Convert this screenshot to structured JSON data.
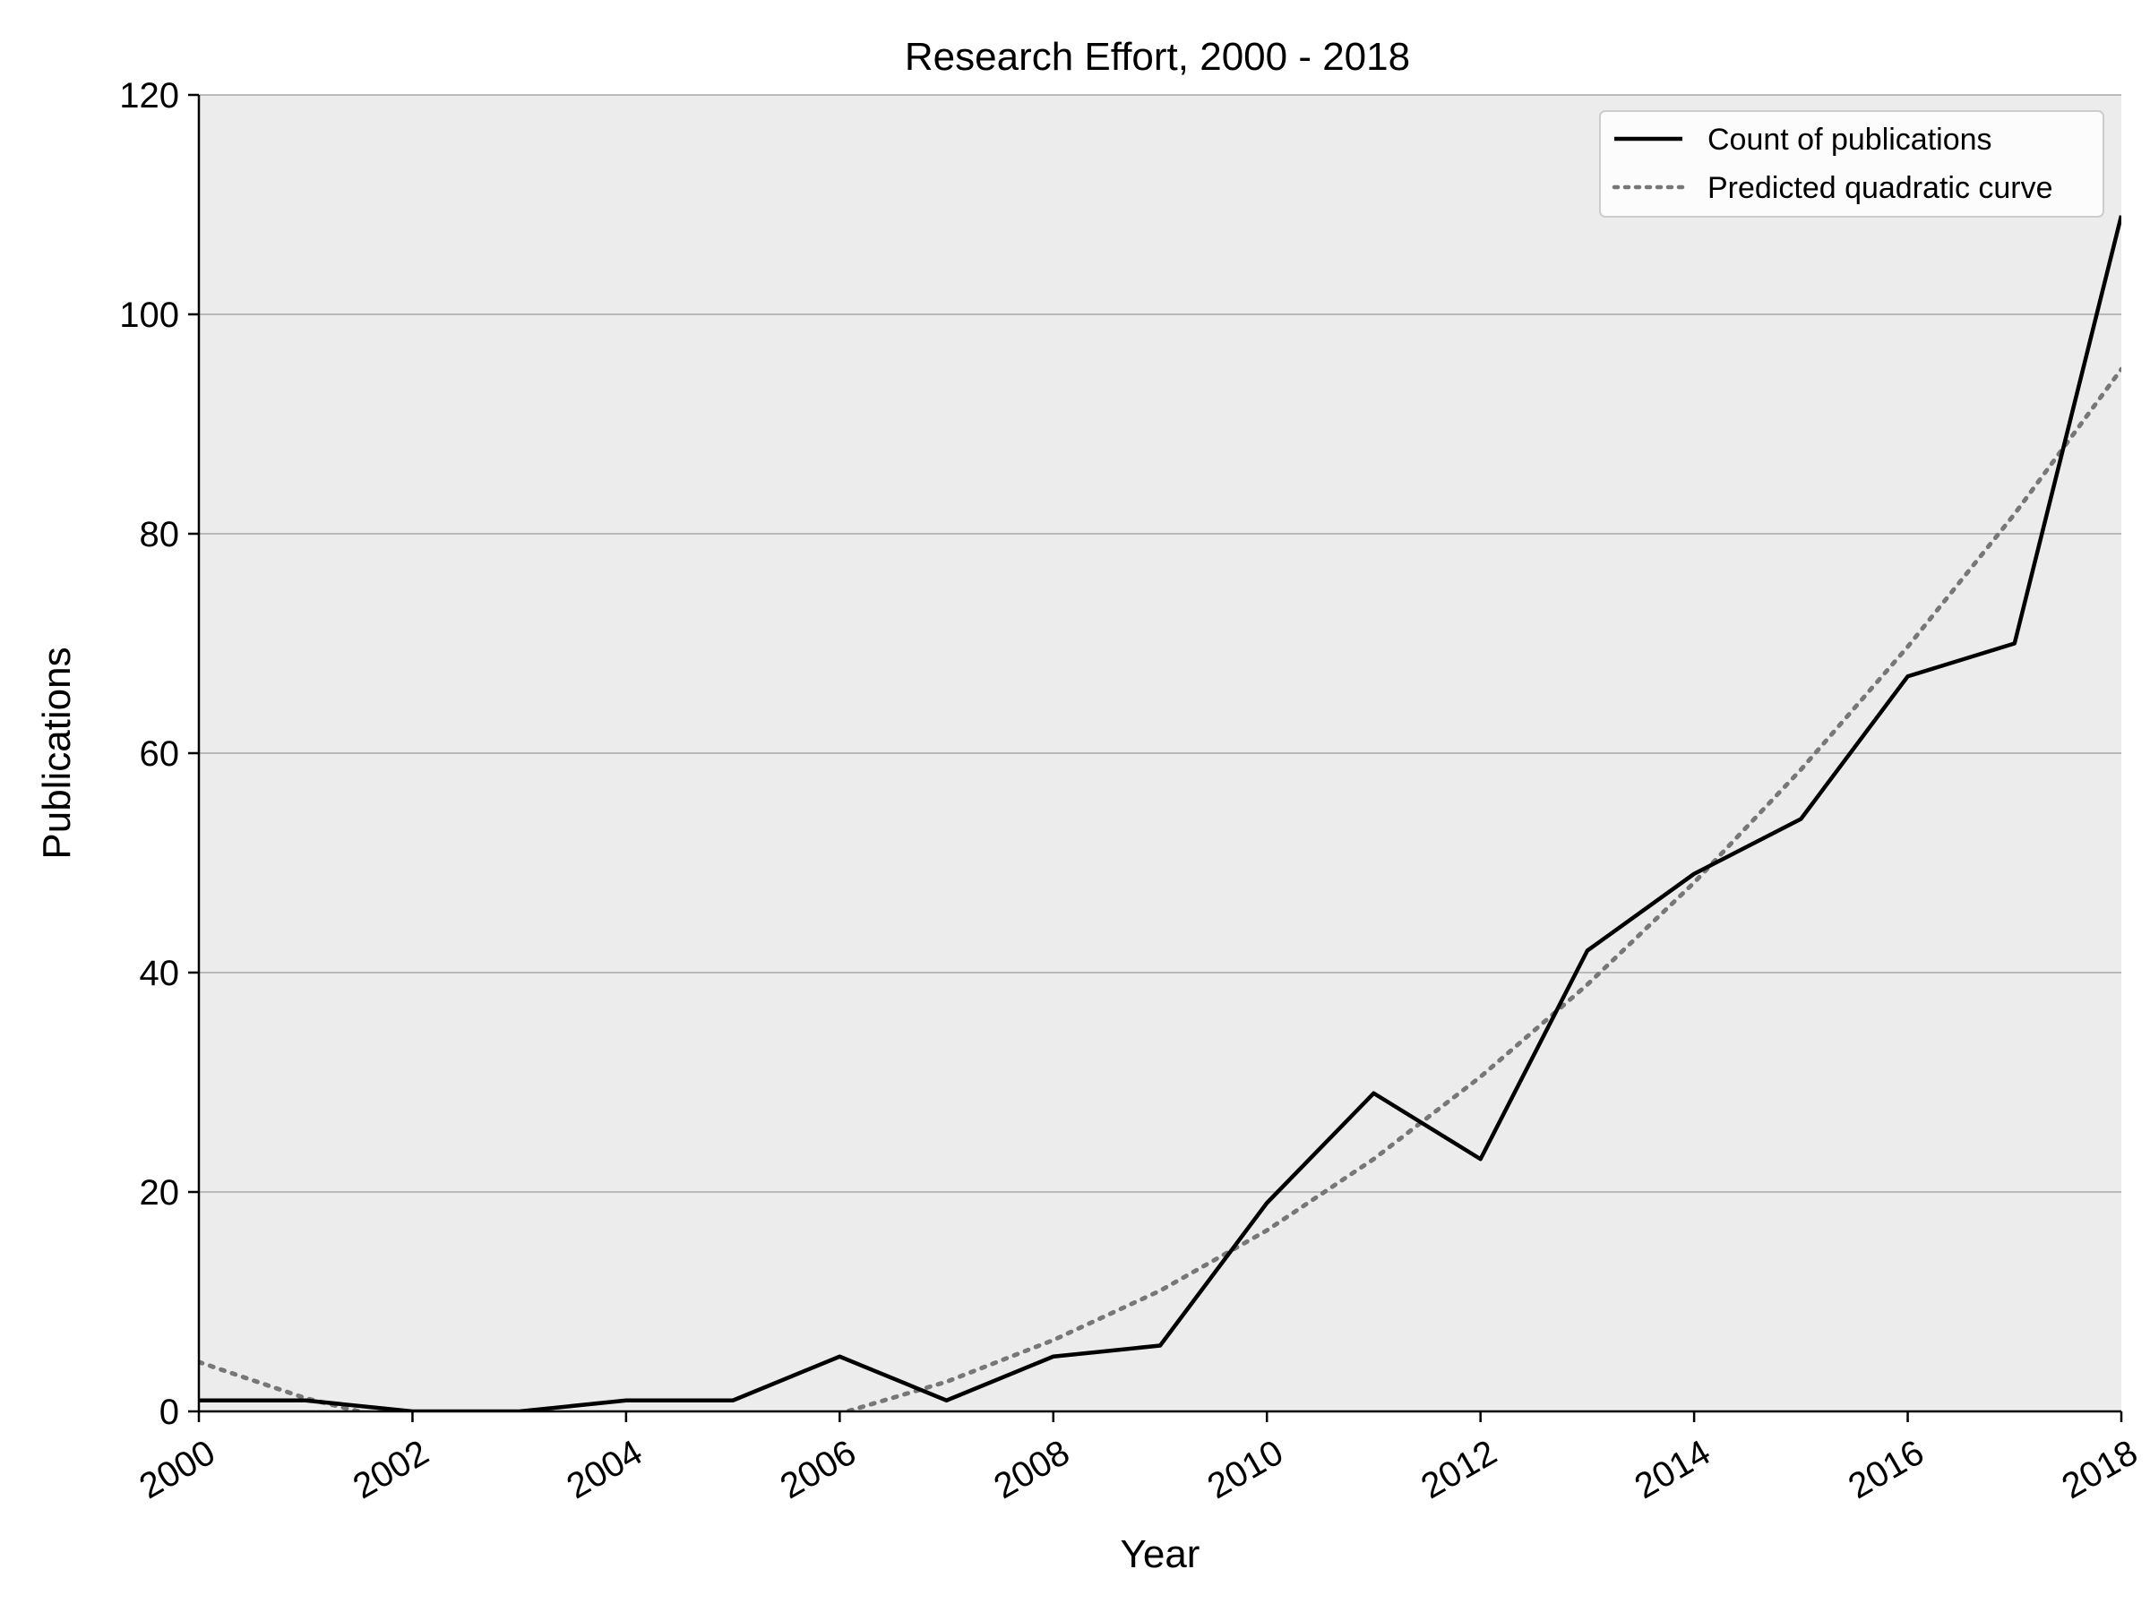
{
  "chart_data": {
    "type": "line",
    "title": "Research Effort, 2000 - 2018",
    "xlabel": "Year",
    "ylabel": "Publications",
    "xlim": [
      2000,
      2018
    ],
    "ylim": [
      0,
      120
    ],
    "xticks": [
      "2000",
      "2002",
      "2004",
      "2006",
      "2008",
      "2010",
      "2012",
      "2014",
      "2016",
      "2018"
    ],
    "yticks": [
      "0",
      "20",
      "40",
      "60",
      "80",
      "100",
      "120"
    ],
    "grid": "horizontal",
    "legend_position": "top-right",
    "x": [
      2000,
      2001,
      2002,
      2003,
      2004,
      2005,
      2006,
      2007,
      2008,
      2009,
      2010,
      2011,
      2012,
      2013,
      2014,
      2015,
      2016,
      2017,
      2018
    ],
    "series": [
      {
        "name": "Count of publications",
        "style": "solid",
        "color": "#000000",
        "values": [
          1,
          1,
          0,
          0,
          1,
          1,
          5,
          1,
          5,
          6,
          19,
          29,
          23,
          42,
          49,
          54,
          67,
          70,
          109
        ]
      },
      {
        "name": "Predicted quadratic curve",
        "style": "dotted",
        "color": "#777777",
        "values": [
          4.5,
          1.2,
          -1.2,
          -2.7,
          -3.3,
          -2.3,
          -0.2,
          2.7,
          6.5,
          11.0,
          16.5,
          23.0,
          30.5,
          38.9,
          48.2,
          58.5,
          69.7,
          81.8,
          95.0
        ]
      }
    ],
    "colors": {
      "plot_background": "#ececec",
      "gridline": "#a8a8a8"
    }
  }
}
